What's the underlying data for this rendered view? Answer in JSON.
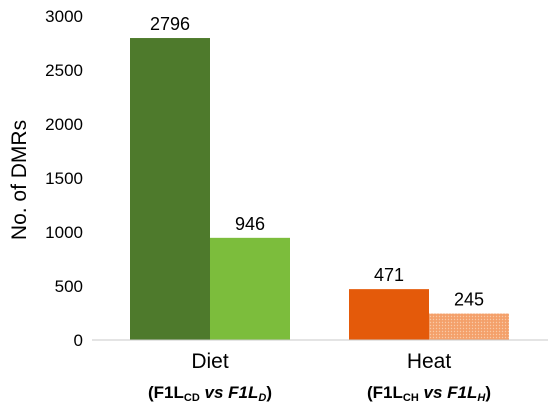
{
  "chart_data": {
    "type": "bar",
    "ylabel": "No. of DMRs",
    "ylim": [
      0,
      3000
    ],
    "yticks": [
      0,
      500,
      1000,
      1500,
      2000,
      2500,
      3000
    ],
    "grid": false,
    "categories": [
      {
        "name": "Diet",
        "sub_open": "(F1L",
        "sub_ctrl": "CD",
        "sub_vs": " vs ",
        "sub_trt": "F1L",
        "sub_trt_sub": "D",
        "sub_close": ")"
      },
      {
        "name": "Heat",
        "sub_open": "(F1L",
        "sub_ctrl": "CH",
        "sub_vs": " vs ",
        "sub_trt": "F1L",
        "sub_trt_sub": "H",
        "sub_close": ")"
      }
    ],
    "bars": [
      {
        "category": "Diet",
        "value": 2796,
        "color": "#4e7a2c"
      },
      {
        "category": "Diet",
        "value": 946,
        "color": "#7cbd3c"
      },
      {
        "category": "Heat",
        "value": 471,
        "color": "#e45a0a"
      },
      {
        "category": "Heat",
        "value": 245,
        "color": "#f4a06a",
        "pattern": "dotted"
      }
    ]
  }
}
